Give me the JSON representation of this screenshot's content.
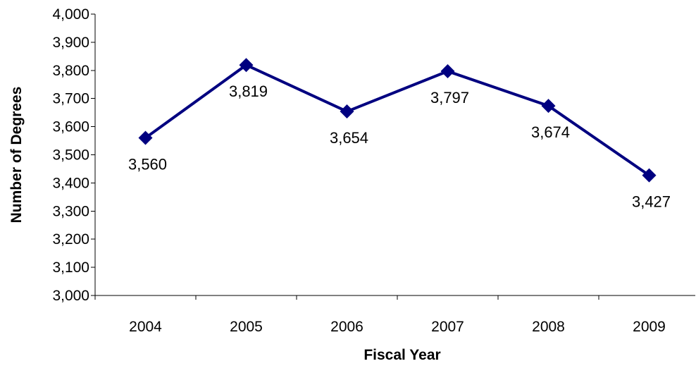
{
  "chart_data": {
    "type": "line",
    "title": "",
    "xlabel": "Fiscal Year",
    "ylabel": "Number of Degrees",
    "categories": [
      "2004",
      "2005",
      "2006",
      "2007",
      "2008",
      "2009"
    ],
    "series": [
      {
        "values": [
          3560,
          3819,
          3654,
          3797,
          3674,
          3427
        ],
        "data_labels": [
          "3,560",
          "3,819",
          "3,654",
          "3,797",
          "3,674",
          "3,427"
        ],
        "color": "#000080",
        "marker": "diamond"
      }
    ],
    "ylim": [
      3000,
      4000
    ],
    "yticks": [
      3000,
      3100,
      3200,
      3300,
      3400,
      3500,
      3600,
      3700,
      3800,
      3900,
      4000
    ],
    "ytick_labels": [
      "3,000",
      "3,100",
      "3,200",
      "3,300",
      "3,400",
      "3,500",
      "3,600",
      "3,700",
      "3,800",
      "3,900",
      "4,000"
    ],
    "grid": false,
    "legend": "none"
  }
}
